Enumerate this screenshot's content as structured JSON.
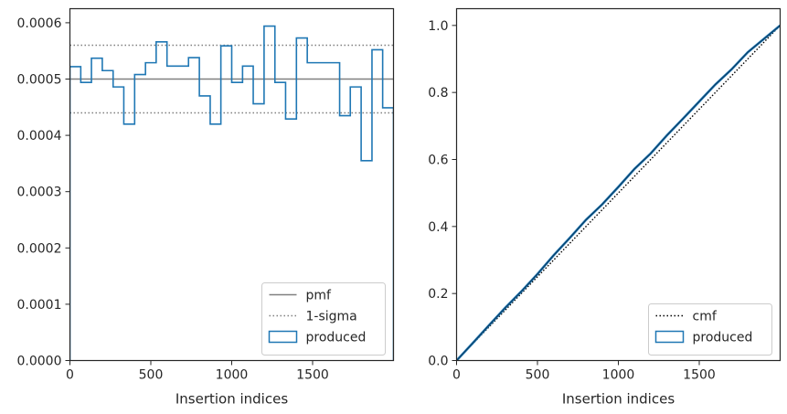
{
  "chart_data": [
    {
      "type": "line",
      "xlabel": "Insertion indices",
      "ylabel": "",
      "xlim": [
        0,
        2000
      ],
      "ylim": [
        0,
        0.000625
      ],
      "xticks": [
        0,
        500,
        1000,
        1500
      ],
      "xtick_labels": [
        "0",
        "500",
        "1000",
        "1500"
      ],
      "yticks": [
        0,
        0.0001,
        0.0002,
        0.0003,
        0.0004,
        0.0005,
        0.0006
      ],
      "ytick_labels": [
        "0.0000",
        "0.0001",
        "0.0002",
        "0.0003",
        "0.0004",
        "0.0005",
        "0.0006"
      ],
      "grid": false,
      "legend_position": "lower-right",
      "series": [
        {
          "name": "pmf",
          "style": "solid",
          "color": "#808080",
          "x": [
            0,
            2000
          ],
          "values": [
            0.0005,
            0.0005
          ]
        },
        {
          "name": "1-sigma",
          "style": "dotted",
          "color": "#808080",
          "x": [
            0,
            2000
          ],
          "values_upper": [
            0.00056,
            0.00056
          ],
          "values_lower": [
            0.00044,
            0.00044
          ]
        },
        {
          "name": "produced",
          "style": "step",
          "color": "#1f77b4",
          "bin_edges": [
            0,
            67,
            133,
            200,
            267,
            333,
            400,
            467,
            533,
            600,
            667,
            733,
            800,
            867,
            933,
            1000,
            1067,
            1133,
            1200,
            1267,
            1333,
            1400,
            1467,
            1533,
            1600,
            1667,
            1733,
            1800,
            1867,
            1933,
            2000
          ],
          "values": [
            0.000522,
            0.000494,
            0.000537,
            0.000515,
            0.000486,
            0.00042,
            0.000508,
            0.000529,
            0.000566,
            0.000523,
            0.000523,
            0.000538,
            0.00047,
            0.00042,
            0.000559,
            0.000494,
            0.000523,
            0.000456,
            0.000594,
            0.000494,
            0.000429,
            0.000573,
            0.000529,
            0.000529,
            0.000529,
            0.000435,
            0.000486,
            0.000355,
            0.000552,
            0.000449
          ]
        }
      ]
    },
    {
      "type": "line",
      "xlabel": "Insertion indices",
      "ylabel": "",
      "xlim": [
        0,
        2000
      ],
      "ylim": [
        0,
        1.05
      ],
      "xticks": [
        0,
        500,
        1000,
        1500
      ],
      "xtick_labels": [
        "0",
        "500",
        "1000",
        "1500"
      ],
      "yticks": [
        0,
        0.2,
        0.4,
        0.6,
        0.8,
        1.0
      ],
      "ytick_labels": [
        "0.0",
        "0.2",
        "0.4",
        "0.6",
        "0.8",
        "1.0"
      ],
      "grid": false,
      "legend_position": "lower-right",
      "series": [
        {
          "name": "cmf",
          "style": "dotted",
          "color": "#000000",
          "x": [
            0,
            2000
          ],
          "values": [
            0,
            1
          ]
        },
        {
          "name": "produced",
          "style": "step",
          "color": "#1f77b4",
          "x": [
            0,
            100,
            200,
            300,
            400,
            500,
            600,
            700,
            800,
            900,
            1000,
            1100,
            1200,
            1300,
            1400,
            1500,
            1600,
            1700,
            1800,
            1900,
            2000
          ],
          "values": [
            0,
            0.052,
            0.105,
            0.157,
            0.206,
            0.258,
            0.314,
            0.366,
            0.42,
            0.466,
            0.518,
            0.572,
            0.618,
            0.672,
            0.722,
            0.773,
            0.824,
            0.869,
            0.92,
            0.96,
            1.0
          ]
        }
      ]
    }
  ]
}
